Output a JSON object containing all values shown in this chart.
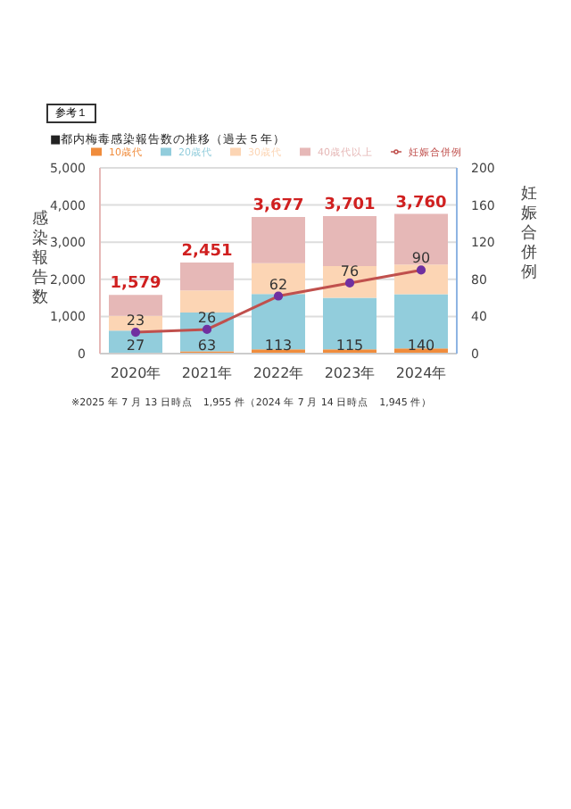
{
  "chart_data": {
    "type": "bar",
    "title": "■都内梅毒感染報告数の推移（過去５年）",
    "ylabel": "感染報告数",
    "y2label": "妊娠合併例",
    "categories": [
      "2020年",
      "2021年",
      "2022年",
      "2023年",
      "2024年"
    ],
    "stacked": true,
    "series": [
      {
        "name": "10歳代",
        "color": "#f08c3c",
        "values": [
          27,
          63,
          113,
          115,
          140
        ],
        "value_labels": [
          "27",
          "63",
          "113",
          "115",
          "140"
        ]
      },
      {
        "name": "20歳代",
        "color": "#92cddc",
        "values": [
          590,
          1040,
          1490,
          1390,
          1460
        ]
      },
      {
        "name": "30歳代",
        "color": "#fcd5b4",
        "values": [
          400,
          600,
          830,
          850,
          800
        ]
      },
      {
        "name": "40歳代以上",
        "color": "#e6b8b7",
        "values": [
          562,
          748,
          1244,
          1346,
          1360
        ]
      },
      {
        "name": "妊娠合併例",
        "type": "line",
        "axis": "y2",
        "color": "#c0504d",
        "values": [
          23,
          26,
          62,
          76,
          90
        ],
        "value_labels": [
          "23",
          "26",
          "62",
          "76",
          "90"
        ],
        "marker": "circle"
      }
    ],
    "totals": [
      "1,579",
      "2,451",
      "3,677",
      "3,701",
      "3,760"
    ],
    "ylim": [
      0,
      5000
    ],
    "yticks": [
      {
        "value": 0,
        "label": "0"
      },
      {
        "value": 1000,
        "label": "1,000"
      },
      {
        "value": 2000,
        "label": "2,000"
      },
      {
        "value": 3000,
        "label": "3,000"
      },
      {
        "value": 4000,
        "label": "4,000"
      },
      {
        "value": 5000,
        "label": "5,000"
      }
    ],
    "y2lim": [
      0,
      200
    ],
    "y2ticks": [
      0,
      40,
      80,
      120,
      160,
      200
    ],
    "grid": "y",
    "legend": "top",
    "annotations": [
      "参考１",
      "※2025 年 7 月 13 日時点　1,955 件（2024 年 7 月 14 日時点　1,945 件）"
    ]
  }
}
